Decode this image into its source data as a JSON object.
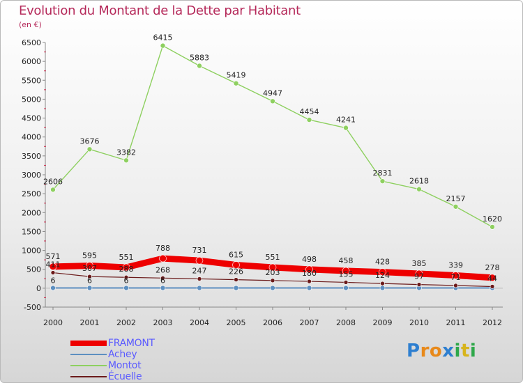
{
  "header": {
    "title": "Evolution du Montant de la Dette par Habitant",
    "subtitle": "(en €)"
  },
  "brand": {
    "letters": [
      "P",
      "r",
      "o",
      "x",
      "i",
      "t",
      "i"
    ],
    "colors": [
      "#2e7fd0",
      "#e8891a",
      "#e8891a",
      "#2e7fd0",
      "#2ea84a",
      "#d7b41c",
      "#2ea84a"
    ]
  },
  "colors": {
    "title": "#b5295a",
    "legend_text": "#5b5bff"
  },
  "chart_data": {
    "type": "line",
    "title": "Evolution du Montant de la Dette par Habitant",
    "ylabel": "(en €)",
    "xlabel": "",
    "ylim": [
      -500,
      6500
    ],
    "ytick_step": 500,
    "grid": false,
    "legend_position": "bottom-left",
    "categories": [
      "2000",
      "2001",
      "2002",
      "2003",
      "2004",
      "2005",
      "2006",
      "2007",
      "2008",
      "2009",
      "2010",
      "2011",
      "2012"
    ],
    "series": [
      {
        "name": "FRAMONT",
        "color": "#ee0000",
        "values": [
          571,
          595,
          551,
          788,
          731,
          615,
          551,
          498,
          458,
          428,
          385,
          339,
          278
        ],
        "labels": [
          "571",
          "595",
          "551",
          "788",
          "731",
          "615",
          "551",
          "498",
          "458",
          "428",
          "385",
          "339",
          "278"
        ]
      },
      {
        "name": "Achey",
        "color": "#5d8fc0",
        "values": [
          6,
          6,
          6,
          6,
          6,
          6,
          6,
          6,
          6,
          6,
          6,
          6,
          6
        ],
        "labels": [
          "6",
          "6",
          "6",
          "6",
          "",
          "",
          "",
          "",
          "",
          "",
          "",
          "",
          ""
        ]
      },
      {
        "name": "Montot",
        "color": "#8ed060",
        "values": [
          2606,
          3676,
          3382,
          6415,
          5883,
          5419,
          4947,
          4454,
          4241,
          2831,
          2618,
          2157,
          1620
        ],
        "labels": [
          "2606",
          "3676",
          "3382",
          "6415",
          "5883",
          "5419",
          "4947",
          "4454",
          "4241",
          "2831",
          "2618",
          "2157",
          "1620"
        ]
      },
      {
        "name": "Écuelle",
        "color": "#6b1a1a",
        "values": [
          411,
          307,
          288,
          268,
          247,
          226,
          203,
          180,
          155,
          124,
          97,
          71,
          44
        ],
        "labels": [
          "411",
          "307",
          "288",
          "268",
          "247",
          "226",
          "203",
          "180",
          "155",
          "124",
          "97",
          "71",
          "44"
        ]
      }
    ]
  }
}
